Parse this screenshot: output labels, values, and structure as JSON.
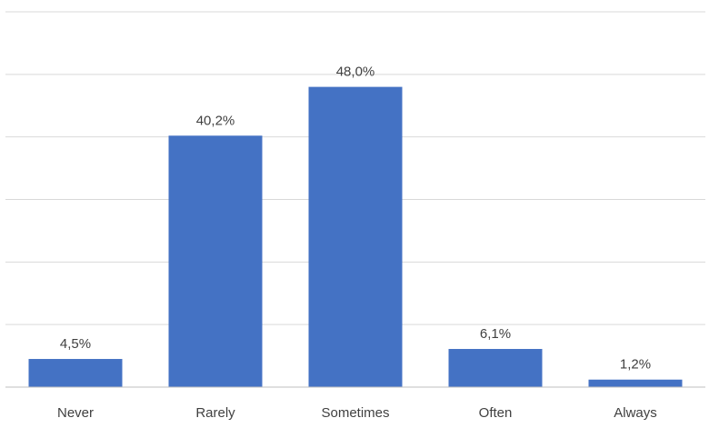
{
  "chart_data": {
    "type": "bar",
    "categories": [
      "Never",
      "Rarely",
      "Sometimes",
      "Often",
      "Always"
    ],
    "values": [
      4.5,
      40.2,
      48.0,
      6.1,
      1.2
    ],
    "data_labels": [
      "4,5%",
      "40,2%",
      "48,0%",
      "6,1%",
      "1,2%"
    ],
    "ylim": [
      0,
      60
    ],
    "grid": true,
    "bar_color": "#4472c4",
    "grid_color": "#d9d9d9",
    "axis_color": "#bfbfbf",
    "text_color": "#404040"
  }
}
